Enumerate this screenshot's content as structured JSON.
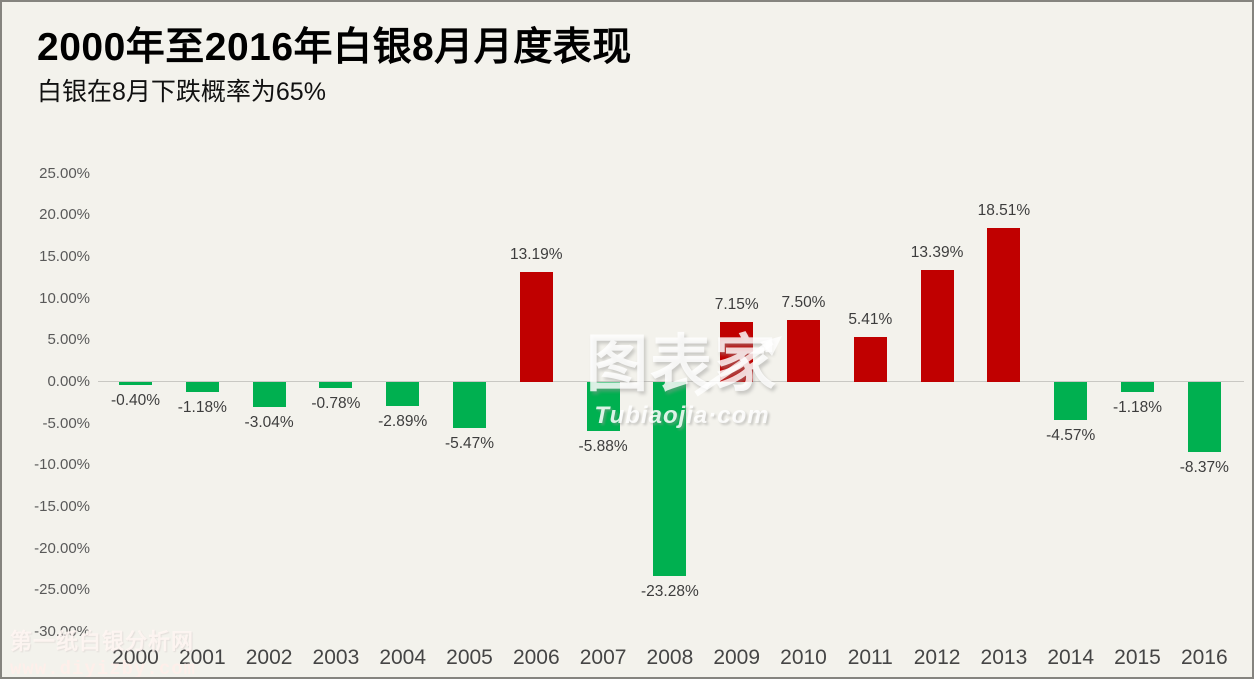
{
  "header": {
    "title": "2000年至2016年白银8月月度表现",
    "subtitle": "白银在8月下跌概率为65%"
  },
  "watermark_center": {
    "line1": "图表家",
    "line2": "Tubiaojia·com"
  },
  "watermark_corner": {
    "line1": "第一纸白银分析网",
    "line2": "www.diyizby.com"
  },
  "colors": {
    "background": "#F3F2EC",
    "positive_bar": "#C00000",
    "negative_bar": "#00B050",
    "zero_axis_line": "#C9C8C3",
    "tick_text": "#595959",
    "data_label_text": "#3d3d3d"
  },
  "chart_data": {
    "type": "bar",
    "title": "2000年至2016年白银8月月度表现",
    "subtitle": "白银在8月下跌概率为65%",
    "xlabel": "",
    "ylabel": "",
    "grid": false,
    "legend": false,
    "ylim": [
      -30,
      25
    ],
    "ytick_step": 5,
    "categories": [
      "2000",
      "2001",
      "2002",
      "2003",
      "2004",
      "2005",
      "2006",
      "2007",
      "2008",
      "2009",
      "2010",
      "2011",
      "2012",
      "2013",
      "2014",
      "2015",
      "2016"
    ],
    "values": [
      -0.4,
      -1.18,
      -3.04,
      -0.78,
      -2.89,
      -5.47,
      13.19,
      -5.88,
      -23.28,
      7.15,
      7.5,
      5.41,
      13.39,
      18.51,
      -4.57,
      -1.18,
      -8.37
    ],
    "value_labels": [
      "-0.40%",
      "-1.18%",
      "-3.04%",
      "-0.78%",
      "-2.89%",
      "-5.47%",
      "13.19%",
      "-5.88%",
      "-23.28%",
      "7.15%",
      "7.50%",
      "5.41%",
      "13.39%",
      "18.51%",
      "-4.57%",
      "-1.18%",
      "-8.37%"
    ],
    "yticks": [
      {
        "value": 25,
        "label": "25.00%"
      },
      {
        "value": 20,
        "label": "20.00%"
      },
      {
        "value": 15,
        "label": "15.00%"
      },
      {
        "value": 10,
        "label": "10.00%"
      },
      {
        "value": 5,
        "label": "5.00%"
      },
      {
        "value": 0,
        "label": "0.00%"
      },
      {
        "value": -5,
        "label": "-5.00%"
      },
      {
        "value": -10,
        "label": "-10.00%"
      },
      {
        "value": -15,
        "label": "-15.00%"
      },
      {
        "value": -20,
        "label": "-20.00%"
      },
      {
        "value": -25,
        "label": "-25.00%"
      },
      {
        "value": -30,
        "label": "-30.00%"
      }
    ]
  }
}
